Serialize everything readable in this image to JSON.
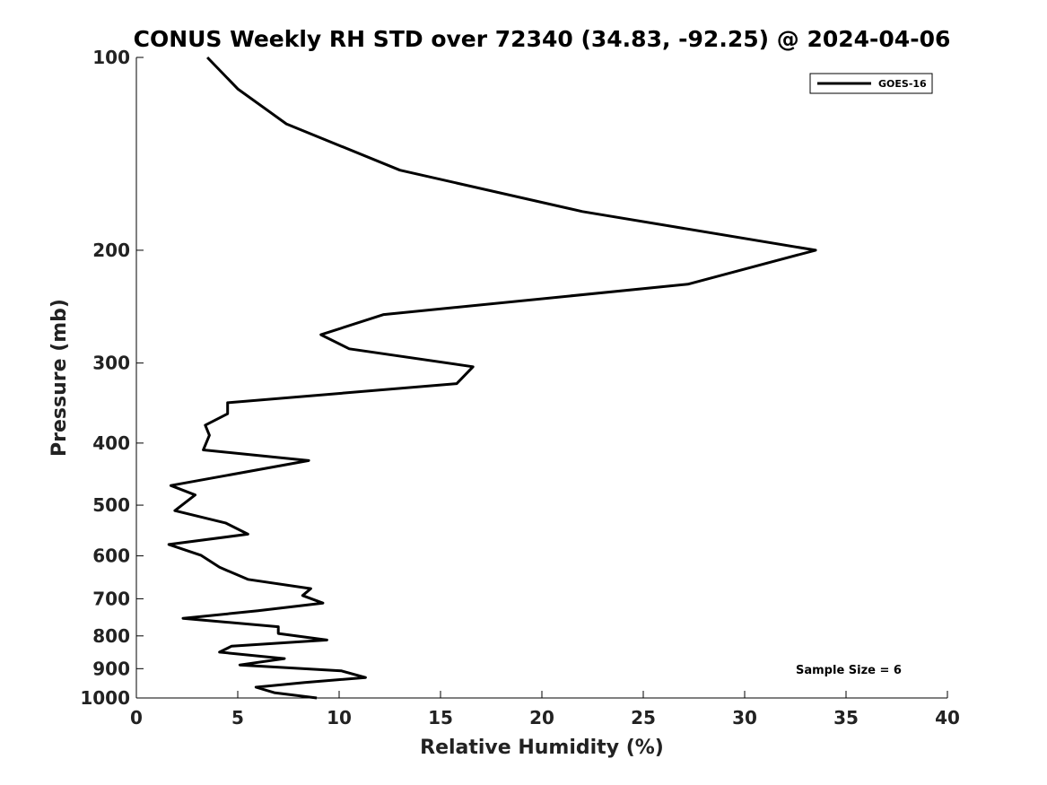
{
  "chart_data": {
    "type": "line",
    "title": "CONUS Weekly RH STD over 72340 (34.83, -92.25) @ 2024-04-06",
    "xlabel": "Relative Humidity (%)",
    "ylabel": "Pressure (mb)",
    "xlim": [
      0,
      40
    ],
    "ylim": [
      1000,
      100
    ],
    "yscale": "log",
    "y_inverted": true,
    "xticks": [
      0,
      5,
      10,
      15,
      20,
      25,
      30,
      35,
      40
    ],
    "yticks": [
      100,
      200,
      300,
      400,
      500,
      600,
      700,
      800,
      900,
      1000
    ],
    "grid": false,
    "legend_position": "top-right",
    "annotation": "Sample Size = 6",
    "series": [
      {
        "name": "GOES-16",
        "color": "#000000",
        "x": [
          3.5,
          5.0,
          7.4,
          13.0,
          22.0,
          33.5,
          27.2,
          12.2,
          9.1,
          10.5,
          16.6,
          15.8,
          4.5,
          4.5,
          3.4,
          3.6,
          3.3,
          8.5,
          1.7,
          2.9,
          1.9,
          4.4,
          5.5,
          1.6,
          3.2,
          4.1,
          5.5,
          8.6,
          8.2,
          9.2,
          6.0,
          2.3,
          7.0,
          7.0,
          9.4,
          4.7,
          4.1,
          7.3,
          5.1,
          10.1,
          11.3,
          8.3,
          5.9,
          6.8,
          8.9
        ],
        "y": [
          100,
          112,
          127,
          150,
          174,
          200,
          226,
          252,
          271,
          285,
          304,
          323,
          346,
          360,
          375,
          389,
          410,
          426,
          466,
          482,
          510,
          533,
          555,
          576,
          599,
          625,
          653,
          675,
          692,
          711,
          731,
          751,
          774,
          793,
          812,
          830,
          848,
          868,
          888,
          907,
          929,
          946,
          962,
          981,
          1000
        ]
      }
    ]
  }
}
